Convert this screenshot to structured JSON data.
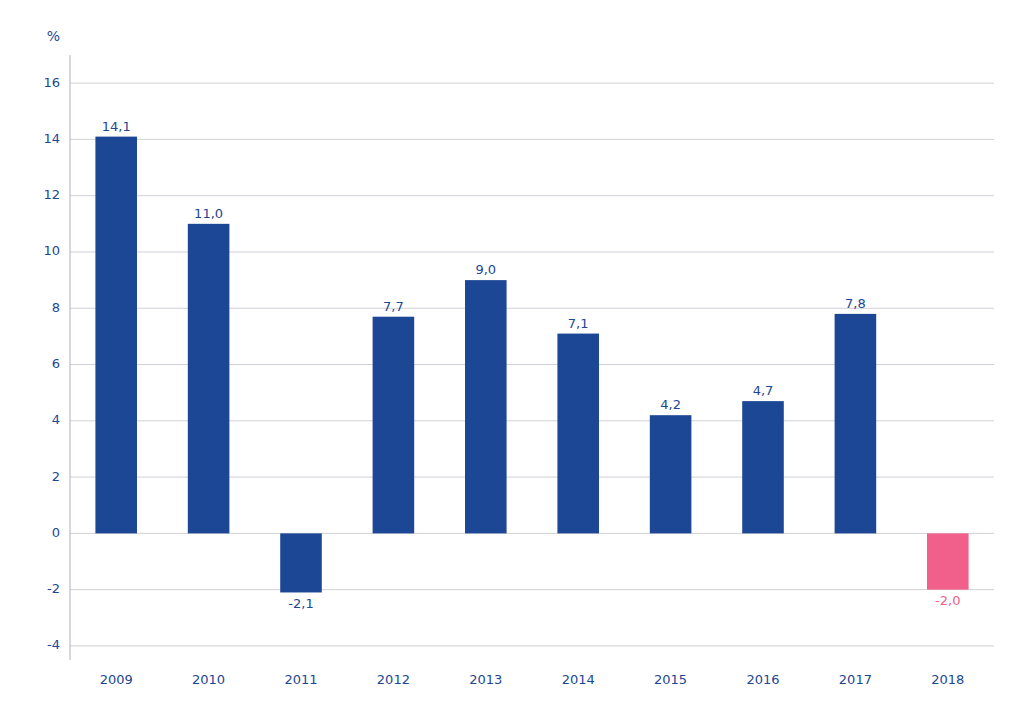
{
  "chart_data": {
    "type": "bar",
    "categories": [
      "2009",
      "2010",
      "2011",
      "2012",
      "2013",
      "2014",
      "2015",
      "2016",
      "2017",
      "2018"
    ],
    "values": [
      14.1,
      11.0,
      -2.1,
      7.7,
      9.0,
      7.1,
      4.2,
      4.7,
      7.8,
      -2.0
    ],
    "value_labels": [
      "14,1",
      "11,0",
      "-2,1",
      "7,7",
      "9,0",
      "7,1",
      "4,2",
      "4,7",
      "7,8",
      "-2,0"
    ],
    "colors": [
      "#1c4794",
      "#1c4794",
      "#1c4794",
      "#1c4794",
      "#1c4794",
      "#1c4794",
      "#1c4794",
      "#1c4794",
      "#1c4794",
      "#f0608a"
    ],
    "ylabel": "%",
    "ylim": [
      -4.5,
      17
    ],
    "yticks": [
      -4,
      -2,
      0,
      2,
      4,
      6,
      8,
      10,
      12,
      14,
      16
    ],
    "grid": true,
    "data_labels": true
  }
}
